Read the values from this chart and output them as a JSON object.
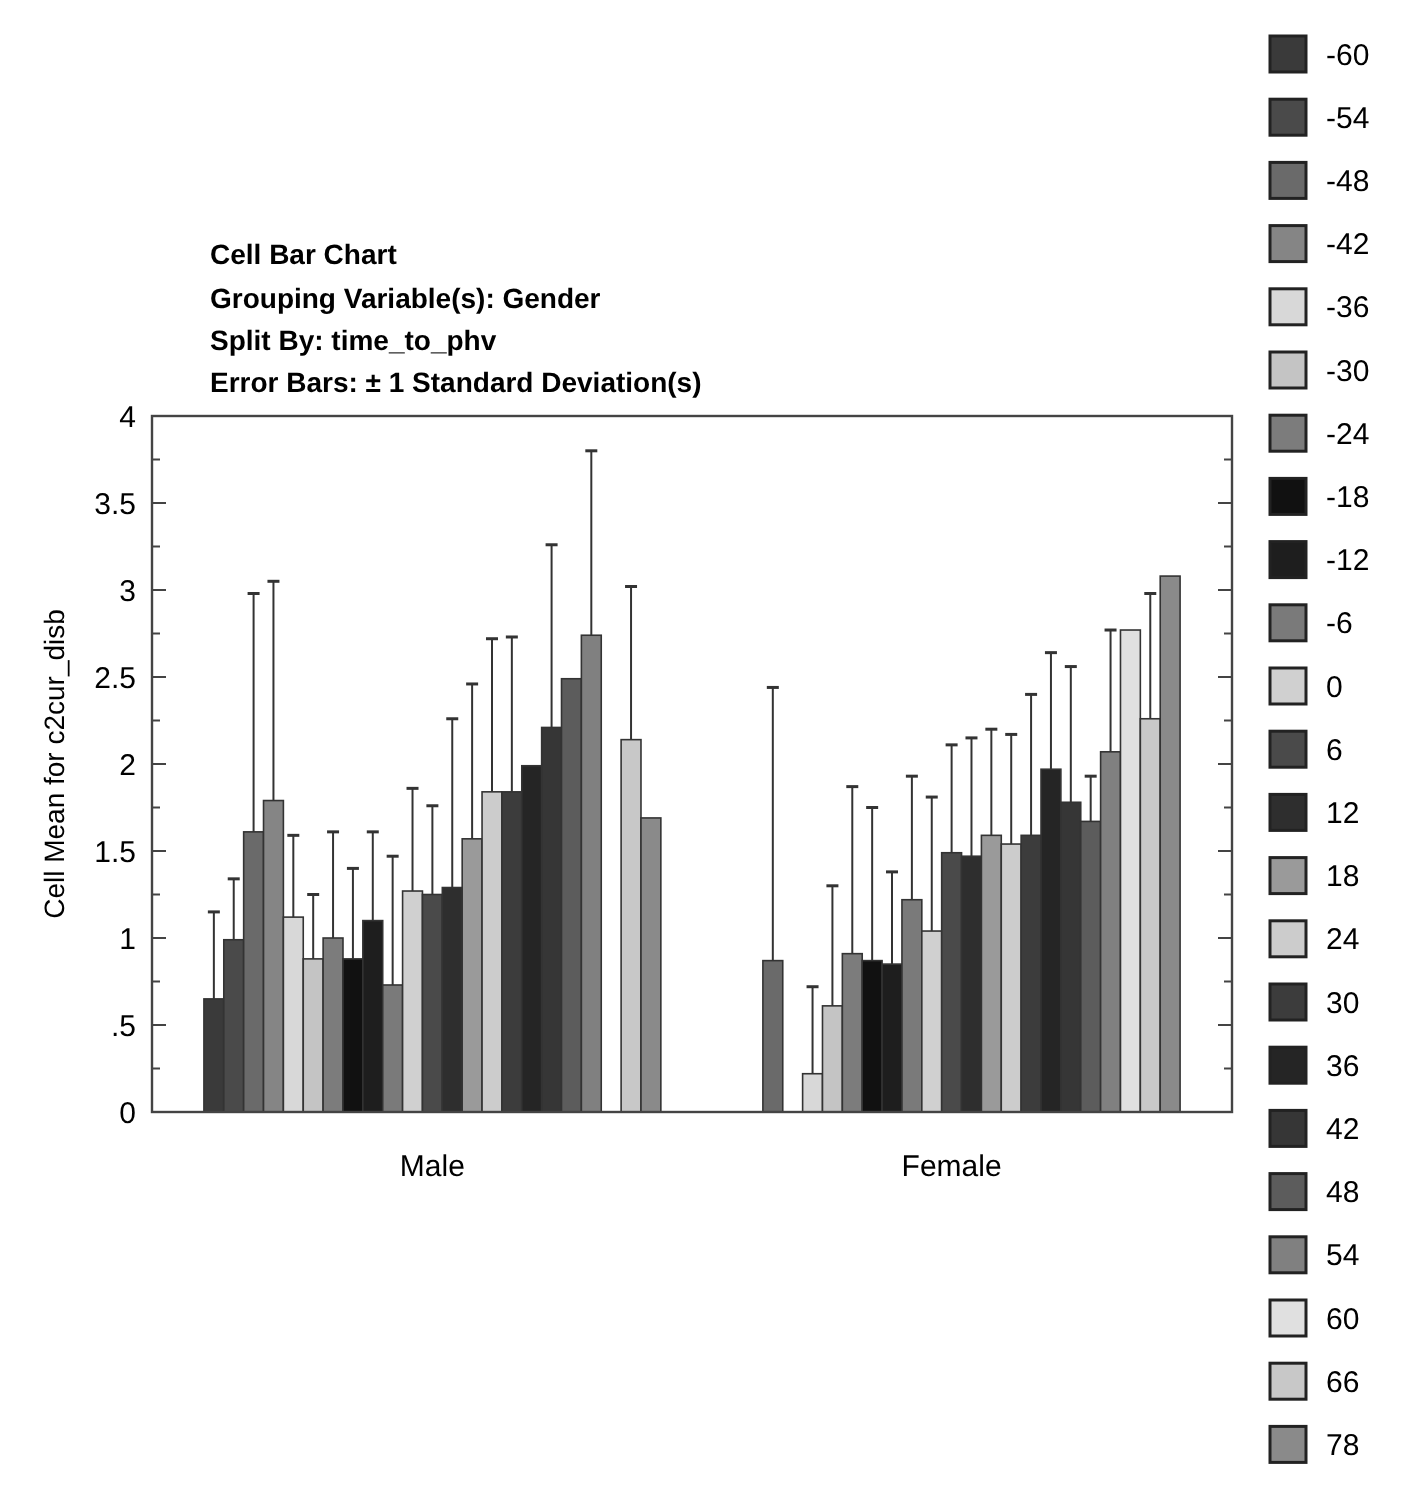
{
  "chart_data": {
    "type": "bar",
    "title": "Cell Bar Chart",
    "subtitle": "Grouping Variable(s): Gender\nSplit By: time_to_phv\nError Bars: ± 1 Standard Deviation(s)",
    "ylabel": "Cell Mean for c2cur_disb",
    "categories": [
      "Male",
      "Female"
    ],
    "ylim": [
      0,
      4
    ],
    "yticks": [
      0,
      {
        "value": 0.25,
        "label": null
      },
      {
        "value": 0.5,
        "label": ".5"
      },
      {
        "value": 0.75,
        "label": null
      },
      1,
      {
        "value": 1.25,
        "label": null
      },
      1.5,
      {
        "value": 1.75,
        "label": null
      },
      2,
      {
        "value": 2.25,
        "label": null
      },
      2.5,
      {
        "value": 2.75,
        "label": null
      },
      3,
      {
        "value": 3.25,
        "label": null
      },
      3.5,
      {
        "value": 3.75,
        "label": null
      },
      4
    ],
    "legend": "right",
    "grid": false,
    "series": [
      {
        "name": "-60",
        "color": "#3a3a3a",
        "values": [
          0.65,
          null
        ],
        "errors": [
          [
            0.65,
            1.15
          ],
          null
        ]
      },
      {
        "name": "-54",
        "color": "#4a4a4a",
        "values": [
          0.99,
          null
        ],
        "errors": [
          [
            0.99,
            1.34
          ],
          null
        ]
      },
      {
        "name": "-48",
        "color": "#6a6a6a",
        "values": [
          1.61,
          0.87
        ],
        "errors": [
          [
            1.61,
            2.98
          ],
          [
            0.87,
            2.44
          ]
        ]
      },
      {
        "name": "-42",
        "color": "#858585",
        "values": [
          1.79,
          null
        ],
        "errors": [
          [
            1.79,
            3.05
          ],
          null
        ]
      },
      {
        "name": "-36",
        "color": "#d8d8d8",
        "values": [
          1.12,
          0.22
        ],
        "errors": [
          [
            1.12,
            1.59
          ],
          [
            0.22,
            0.72
          ]
        ]
      },
      {
        "name": "-30",
        "color": "#c4c4c4",
        "values": [
          0.88,
          0.61
        ],
        "errors": [
          [
            0.88,
            1.25
          ],
          [
            0.61,
            1.3
          ]
        ]
      },
      {
        "name": "-24",
        "color": "#7c7c7c",
        "values": [
          1.0,
          0.91
        ],
        "errors": [
          [
            1.0,
            1.61
          ],
          [
            0.91,
            1.87
          ]
        ]
      },
      {
        "name": "-18",
        "color": "#111111",
        "values": [
          0.88,
          0.87
        ],
        "errors": [
          [
            0.88,
            1.4
          ],
          [
            0.87,
            1.75
          ]
        ]
      },
      {
        "name": "-12",
        "color": "#1e1e1e",
        "values": [
          1.1,
          0.85
        ],
        "errors": [
          [
            1.1,
            1.61
          ],
          [
            0.85,
            1.38
          ]
        ]
      },
      {
        "name": "-6",
        "color": "#7a7a7a",
        "values": [
          0.73,
          1.22
        ],
        "errors": [
          [
            0.73,
            1.47
          ],
          [
            1.22,
            1.93
          ]
        ]
      },
      {
        "name": "0",
        "color": "#d0d0d0",
        "values": [
          1.27,
          1.04
        ],
        "errors": [
          [
            1.27,
            1.86
          ],
          [
            1.04,
            1.81
          ]
        ]
      },
      {
        "name": "6",
        "color": "#4a4a4a",
        "values": [
          1.25,
          1.49
        ],
        "errors": [
          [
            1.25,
            1.76
          ],
          [
            1.49,
            2.11
          ]
        ]
      },
      {
        "name": "12",
        "color": "#2e2e2e",
        "values": [
          1.29,
          1.47
        ],
        "errors": [
          [
            1.29,
            2.26
          ],
          [
            1.47,
            2.15
          ]
        ]
      },
      {
        "name": "18",
        "color": "#9a9a9a",
        "values": [
          1.57,
          1.59
        ],
        "errors": [
          [
            1.57,
            2.46
          ],
          [
            1.59,
            2.2
          ]
        ]
      },
      {
        "name": "24",
        "color": "#cccccc",
        "values": [
          1.84,
          1.54
        ],
        "errors": [
          [
            1.84,
            2.72
          ],
          [
            1.54,
            2.17
          ]
        ]
      },
      {
        "name": "30",
        "color": "#3c3c3c",
        "values": [
          1.84,
          1.59
        ],
        "errors": [
          [
            1.84,
            2.73
          ],
          [
            1.59,
            2.4
          ]
        ]
      },
      {
        "name": "36",
        "color": "#252525",
        "values": [
          1.99,
          1.97
        ],
        "errors": [
          null,
          [
            1.97,
            2.64
          ]
        ]
      },
      {
        "name": "42",
        "color": "#363636",
        "values": [
          2.21,
          1.78
        ],
        "errors": [
          [
            2.21,
            3.26
          ],
          [
            1.78,
            2.56
          ]
        ]
      },
      {
        "name": "48",
        "color": "#5c5c5c",
        "values": [
          2.49,
          1.67
        ],
        "errors": [
          null,
          [
            1.67,
            1.93
          ]
        ]
      },
      {
        "name": "54",
        "color": "#808080",
        "values": [
          2.74,
          2.07
        ],
        "errors": [
          [
            2.74,
            3.8
          ],
          [
            2.07,
            2.77
          ]
        ]
      },
      {
        "name": "60",
        "color": "#e0e0e0",
        "values": [
          null,
          2.77
        ],
        "errors": [
          null,
          null
        ]
      },
      {
        "name": "66",
        "color": "#c8c8c8",
        "values": [
          2.14,
          2.26
        ],
        "errors": [
          [
            2.14,
            3.02
          ],
          [
            2.26,
            2.98
          ]
        ]
      },
      {
        "name": "78",
        "color": "#8a8a8a",
        "values": [
          1.69,
          3.08
        ],
        "errors": [
          null,
          null
        ]
      }
    ]
  }
}
